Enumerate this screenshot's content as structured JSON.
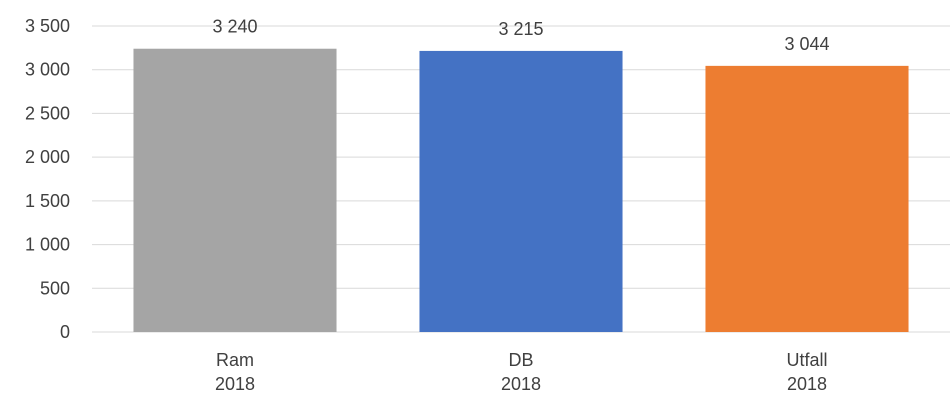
{
  "chart_data": {
    "type": "bar",
    "categories": [
      [
        "Ram",
        "2018"
      ],
      [
        "DB",
        "2018"
      ],
      [
        "Utfall",
        "2018"
      ]
    ],
    "values": [
      3240,
      3215,
      3044
    ],
    "data_labels": [
      "3 240",
      "3 215",
      "3 044"
    ],
    "bar_colors": [
      "#a5a5a5",
      "#4472c4",
      "#ed7d31"
    ],
    "y_tick_labels": [
      "0",
      "500",
      "1 000",
      "1 500",
      "2 000",
      "2 500",
      "3 000",
      "3 500"
    ],
    "y_tick_values": [
      0,
      500,
      1000,
      1500,
      2000,
      2500,
      3000,
      3500
    ],
    "ylim": [
      0,
      3500
    ],
    "grid": true,
    "gridline_color": "#d9d9d9",
    "title": "",
    "xlabel": "",
    "ylabel": ""
  }
}
